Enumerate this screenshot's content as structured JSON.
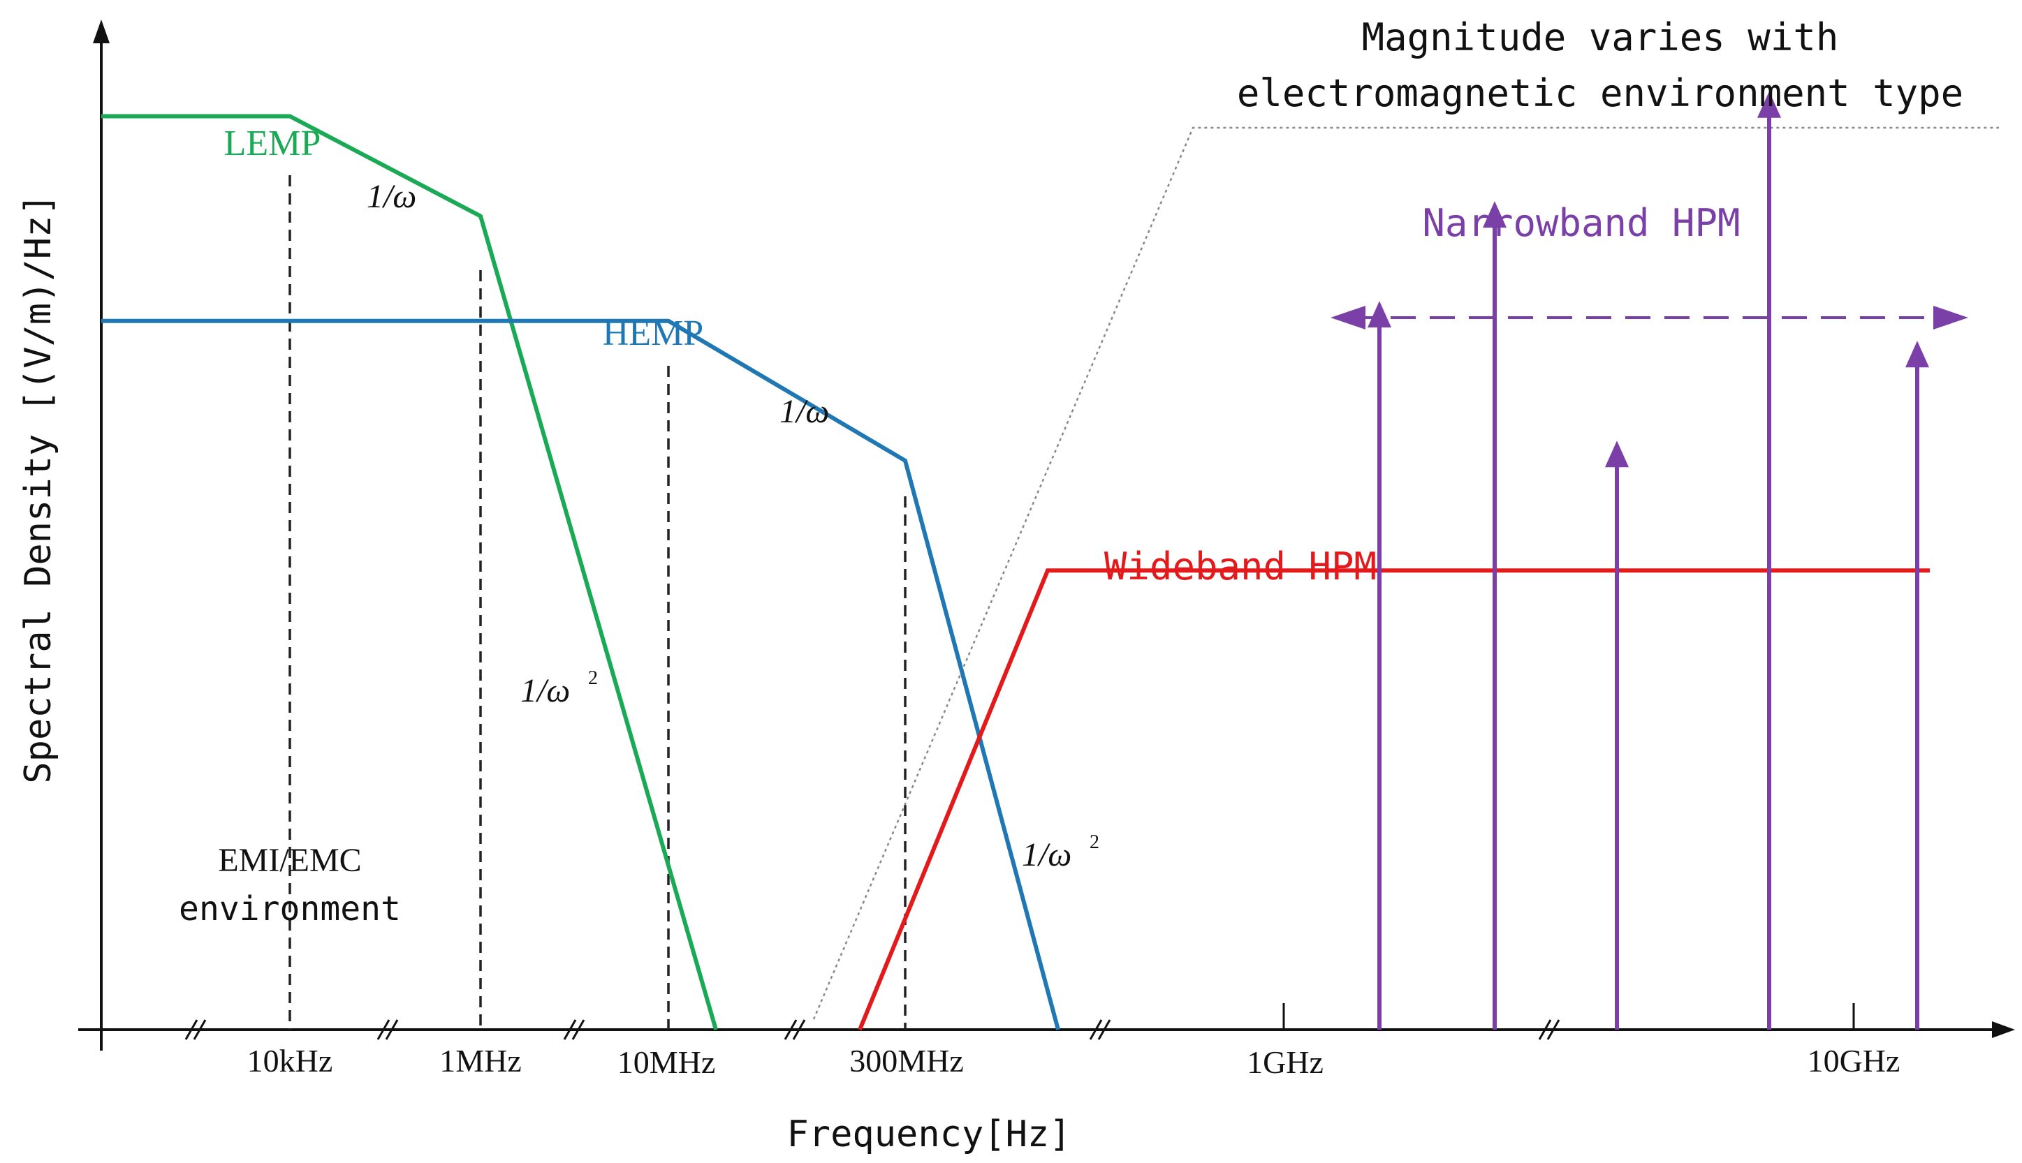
{
  "colors": {
    "lemp": "#1aaa55",
    "hemp": "#1f77b4",
    "wideband": "#e31a1c",
    "narrowband": "#7b3fa8",
    "axis": "#111111",
    "guide": "#222222",
    "callout": "#777777"
  },
  "chart_data": {
    "type": "line",
    "title": "",
    "xlabel": "Frequency[Hz]",
    "ylabel": "Spectral Density [(V/m)/Hz]",
    "x_scale": "broken-log",
    "y_scale": "qualitative (no ticks)",
    "x_ticks": [
      "10kHz",
      "1MHz",
      "10MHz",
      "300MHz",
      "1GHz",
      "10GHz"
    ],
    "axis_break_symbol": "//",
    "series": [
      {
        "name": "LEMP",
        "color_key": "lemp",
        "points": [
          {
            "x": "0",
            "y": 0.915
          },
          {
            "x": "10kHz",
            "y": 0.915
          },
          {
            "x": "1MHz",
            "y": 0.815
          },
          {
            "x": "~20MHz",
            "y": 0.0
          }
        ],
        "slope_labels": [
          "1/ω",
          "1/ω²"
        ]
      },
      {
        "name": "HEMP",
        "color_key": "hemp",
        "points": [
          {
            "x": "0",
            "y": 0.71
          },
          {
            "x": "10MHz",
            "y": 0.71
          },
          {
            "x": "300MHz",
            "y": 0.57
          },
          {
            "x": "~700MHz",
            "y": 0.0
          }
        ],
        "slope_labels": [
          "1/ω",
          "1/ω²"
        ]
      },
      {
        "name": "Wideband HPM",
        "color_key": "wideband",
        "points": [
          {
            "x": "~200MHz",
            "y": 0.0
          },
          {
            "x": "~600MHz",
            "y": 0.46
          },
          {
            "x": ">10GHz",
            "y": 0.46
          }
        ]
      },
      {
        "name": "Narrowband HPM",
        "color_key": "narrowband",
        "type": "arrows",
        "heights": [
          0.73,
          0.83,
          0.59,
          0.94,
          0.69
        ],
        "range_arrow": "bidirectional dashed",
        "note": "Magnitude varies with electromagnetic environment type"
      }
    ],
    "annotations": {
      "lemp_label": "LEMP",
      "hemp_label": "HEMP",
      "wideband_label": "Wideband HPM",
      "narrowband_label": "Narrowband HPM",
      "inv_omega_1": "1/ω",
      "inv_omega2_1": "1/ω",
      "inv_omega_2": "1/ω",
      "inv_omega2_2": "1/ω",
      "superscript_2": "2",
      "emi_line1": "EMI/EMC",
      "emi_line2": "environment",
      "callout_line1": "Magnitude varies with",
      "callout_line2": "electromagnetic environment type"
    }
  }
}
